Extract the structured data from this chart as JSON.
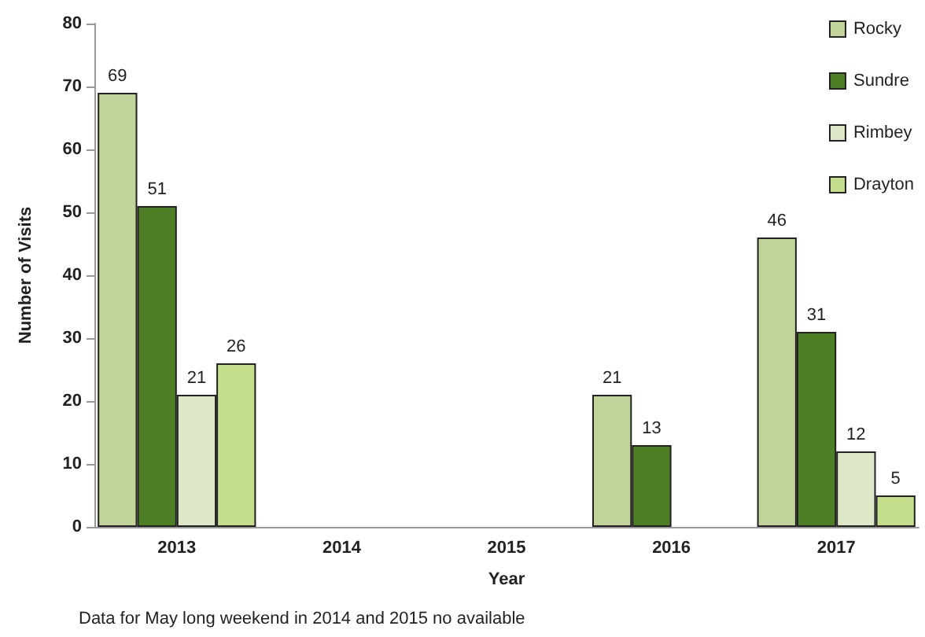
{
  "chart_data": {
    "type": "bar",
    "xlabel": "Year",
    "ylabel": "Number of Visits",
    "categories": [
      "2013",
      "2014",
      "2015",
      "2016",
      "2017"
    ],
    "series": [
      {
        "name": "Rocky",
        "color": "#c3d49a",
        "values": [
          69,
          null,
          null,
          21,
          46
        ]
      },
      {
        "name": "Sundre",
        "color": "#4e7f26",
        "values": [
          51,
          null,
          null,
          13,
          31
        ]
      },
      {
        "name": "Rimbey",
        "color": "#dde8c8",
        "values": [
          21,
          null,
          null,
          null,
          12
        ]
      },
      {
        "name": "Drayton",
        "color": "#c5de8e",
        "values": [
          26,
          null,
          null,
          null,
          5
        ]
      }
    ],
    "ylim": [
      0,
      80
    ],
    "yticks": [
      0,
      10,
      20,
      30,
      40,
      50,
      60,
      70,
      80
    ],
    "grid": false,
    "legend": "top right",
    "data_labels": true,
    "annotations": [
      "Data for May long weekend in 2014 and 2015 no available"
    ]
  }
}
